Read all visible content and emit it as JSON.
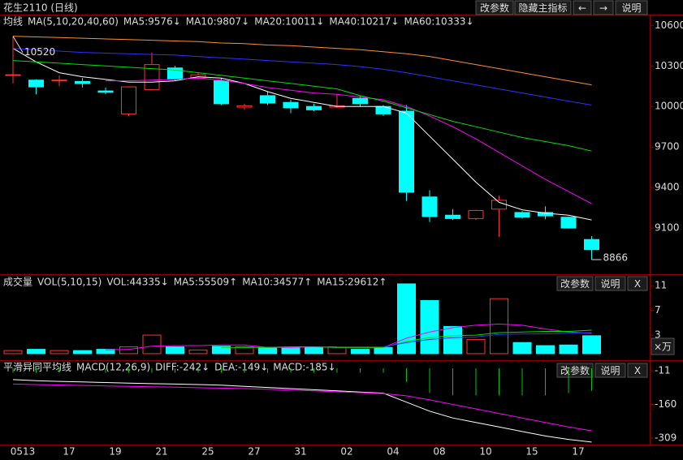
{
  "window": {
    "title": "花生2110 (日线)",
    "buttons": [
      "改参数",
      "隐藏主指标",
      "←",
      "→",
      "说明"
    ]
  },
  "chart_data": [
    {
      "type": "candlestick",
      "title": "均线",
      "subtitle": "MA(5,10,20,40,60)",
      "categories": [
        "0513",
        null,
        "17",
        null,
        "19",
        null,
        "21",
        null,
        "25",
        null,
        "27",
        null,
        "31",
        null,
        "02",
        null,
        "04",
        null,
        "08",
        null,
        "10",
        null,
        "15",
        null,
        "17",
        null
      ],
      "open": [
        10230,
        10195,
        10190,
        10185,
        10115,
        9945,
        10125,
        10285,
        10210,
        10190,
        9995,
        10080,
        10030,
        10000,
        9995,
        10060,
        10000,
        9965,
        9330,
        9195,
        9170,
        9240,
        9215,
        9215,
        9180,
        9015
      ],
      "high": [
        10520,
        10200,
        10230,
        10210,
        10140,
        10150,
        10400,
        10300,
        10250,
        10210,
        10020,
        10110,
        10050,
        10020,
        10090,
        10080,
        10010,
        10010,
        9380,
        9240,
        9235,
        9340,
        9225,
        9260,
        9185,
        9040
      ],
      "low": [
        10170,
        10090,
        10150,
        10140,
        10090,
        9930,
        10120,
        10190,
        10200,
        10010,
        9975,
        10010,
        9950,
        9965,
        9990,
        10000,
        9930,
        9300,
        9145,
        9160,
        9160,
        9035,
        9170,
        9165,
        9095,
        8866
      ],
      "close": [
        10235,
        10145,
        10195,
        10170,
        10105,
        10145,
        10310,
        10205,
        10235,
        10020,
        10005,
        10025,
        9990,
        9975,
        10005,
        10020,
        9945,
        9365,
        9185,
        9170,
        9230,
        9305,
        9180,
        9190,
        9100,
        8940
      ],
      "up_color": "#ff3232",
      "down_color": "#00ffff",
      "series": [
        {
          "name": "MA5:9576↓",
          "color": "#ffffff",
          "values": [
            10430,
            10330,
            10250,
            10220,
            10200,
            10180,
            10180,
            10190,
            10220,
            10210,
            10170,
            10110,
            10060,
            10030,
            10000,
            10000,
            10000,
            9950,
            9780,
            9610,
            9440,
            9290,
            9235,
            9210,
            9195,
            9160
          ]
        },
        {
          "name": "MA10:9807↓",
          "color": "#ff00ff",
          "values": [
            null,
            null,
            null,
            null,
            10190,
            10190,
            10195,
            10200,
            10210,
            10195,
            10170,
            10140,
            10120,
            10100,
            10090,
            10070,
            10050,
            10000,
            9930,
            9850,
            9760,
            9660,
            9560,
            9460,
            9370,
            9280
          ]
        },
        {
          "name": "MA20:10011↓",
          "color": "#00e000",
          "values": [
            10340,
            10330,
            10320,
            10310,
            10300,
            10290,
            10280,
            10270,
            10250,
            10230,
            10210,
            10190,
            10170,
            10150,
            10130,
            10080,
            10040,
            9990,
            9940,
            9890,
            9850,
            9810,
            9770,
            9740,
            9710,
            9670
          ]
        },
        {
          "name": "MA40:10217↓",
          "color": "#3030ff",
          "values": [
            10430,
            10420,
            10410,
            10400,
            10395,
            10390,
            10385,
            10380,
            10370,
            10360,
            10350,
            10340,
            10330,
            10320,
            10310,
            10295,
            10275,
            10250,
            10220,
            10190,
            10160,
            10130,
            10100,
            10070,
            10040,
            10010
          ]
        },
        {
          "name": "MA60:10333↓",
          "color": "#ff8c32",
          "values": [
            10520,
            10515,
            10510,
            10505,
            10500,
            10495,
            10490,
            10485,
            10480,
            10470,
            10465,
            10455,
            10450,
            10440,
            10430,
            10420,
            10405,
            10390,
            10370,
            10340,
            10310,
            10280,
            10250,
            10220,
            10190,
            10160
          ]
        }
      ],
      "ylim": [
        8770,
        10680
      ],
      "yticks": [
        9100,
        9400,
        9700,
        10000,
        10300,
        10600
      ]
    },
    {
      "type": "bar",
      "title": "成交量",
      "subtitle": "VOL(5,10,15)",
      "buttons": [
        "改参数",
        "说明",
        "X"
      ],
      "unit_button": "×万",
      "series": [
        {
          "name": "VOL:44335↓",
          "type": "bar",
          "color": "#00ffff",
          "values": [
            0.5,
            0.7,
            0.5,
            0.5,
            0.7,
            1.1,
            3.0,
            1.1,
            0.6,
            1.2,
            1.1,
            1.0,
            1.0,
            1.0,
            1.1,
            0.7,
            1.0,
            11.3,
            8.6,
            4.4,
            2.3,
            8.9,
            1.8,
            1.3,
            1.4,
            2.9
          ]
        },
        {
          "name": "MA5:55509↑",
          "type": "line",
          "color": "#ff00ff",
          "values": [
            null,
            null,
            null,
            null,
            0.6,
            0.7,
            1.2,
            1.3,
            1.3,
            1.4,
            1.4,
            1.0,
            1.0,
            1.1,
            1.0,
            1.0,
            1.0,
            2.5,
            3.5,
            4.2,
            4.6,
            4.8,
            4.6,
            4.0,
            3.5,
            3.3
          ]
        },
        {
          "name": "MA10:34577↑",
          "type": "line",
          "color": "#00e000",
          "values": [
            null,
            null,
            null,
            null,
            null,
            null,
            null,
            null,
            null,
            1.0,
            1.0,
            1.0,
            1.1,
            1.1,
            1.0,
            1.0,
            1.0,
            2.0,
            2.6,
            2.9,
            3.0,
            3.4,
            3.5,
            3.6,
            3.6,
            3.8
          ]
        },
        {
          "name": "MA15:29612↑",
          "type": "line",
          "color": "#3030ff",
          "values": [
            null,
            null,
            null,
            null,
            null,
            null,
            null,
            null,
            null,
            null,
            null,
            null,
            null,
            null,
            1.1,
            1.1,
            1.1,
            1.8,
            2.3,
            2.6,
            2.7,
            3.1,
            3.2,
            3.2,
            3.3,
            3.4
          ]
        }
      ],
      "ylim": [
        -0.8,
        12.6
      ],
      "yticks": [
        3,
        7,
        11
      ]
    },
    {
      "type": "line",
      "title": "平滑异同平均线",
      "subtitle": "MACD(12,26,9)",
      "buttons": [
        "改参数",
        "说明",
        "X"
      ],
      "series": [
        {
          "name": "DIFF:-242↓",
          "type": "line",
          "color": "#ffffff",
          "values": [
            -50,
            -55,
            -58,
            -60,
            -63,
            -66,
            -68,
            -70,
            -72,
            -75,
            -80,
            -85,
            -90,
            -95,
            -100,
            -105,
            -110,
            -150,
            -190,
            -220,
            -240,
            -260,
            -280,
            -300,
            -315,
            -327
          ]
        },
        {
          "name": "DEA:-149↓",
          "type": "line",
          "color": "#ff00ff",
          "values": [
            -70,
            -72,
            -74,
            -76,
            -78,
            -80,
            -82,
            -84,
            -86,
            -88,
            -90,
            -93,
            -96,
            -100,
            -104,
            -108,
            -112,
            -122,
            -140,
            -160,
            -180,
            -200,
            -220,
            -240,
            -260,
            -277
          ]
        },
        {
          "name": "MACD:-185↓",
          "type": "bar",
          "color": "#00c800",
          "values": [
            -20,
            -20,
            -20,
            -20,
            -20,
            -20,
            -20,
            -20,
            -20,
            -20,
            -20,
            -20,
            -20,
            -20,
            -20,
            -20,
            -20,
            -60,
            -110,
            -120,
            -120,
            -120,
            -120,
            -120,
            -110,
            -100
          ]
        }
      ],
      "ylim": [
        -338,
        25
      ],
      "yticks": [
        -309,
        -160,
        -11
      ]
    }
  ]
}
